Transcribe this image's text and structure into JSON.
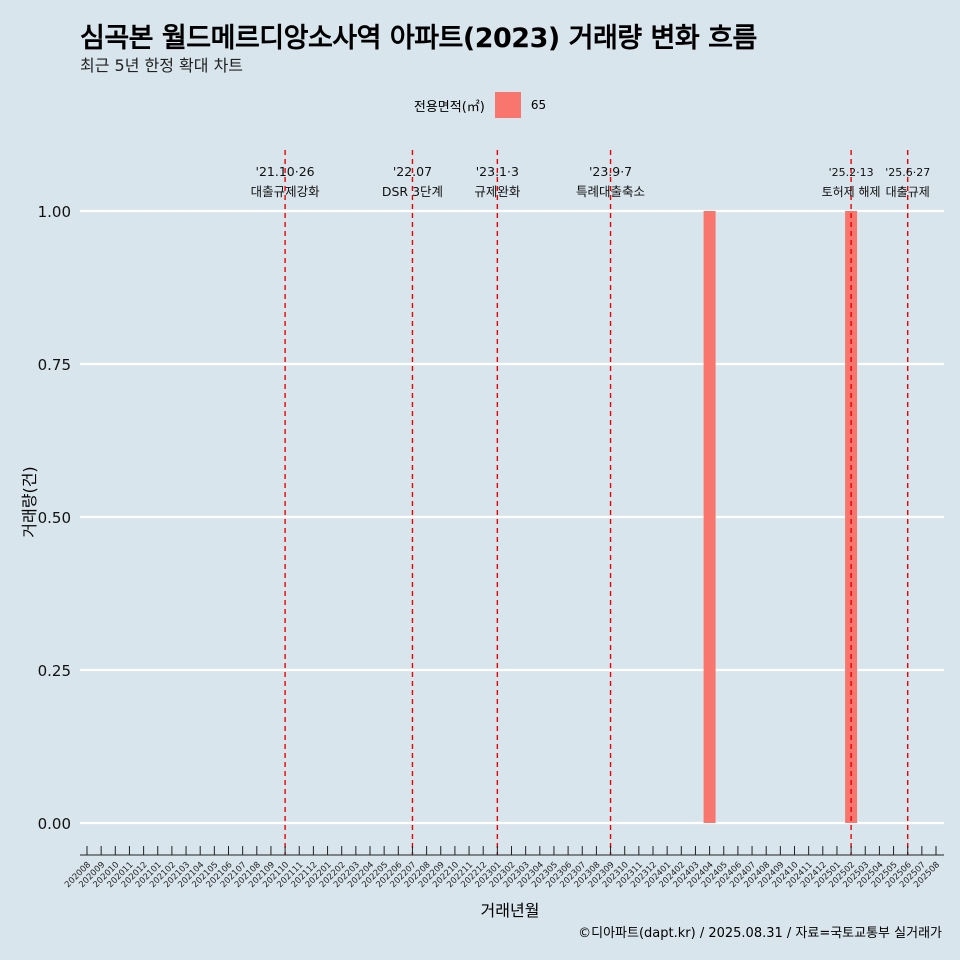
{
  "title": "심곡본 월드메르디앙소사역 아파트(2023) 거래량 변화 흐름",
  "subtitle": "최근 5년 한정 확대 차트",
  "caption": "©디아파트(dapt.kr) / 2025.08.31 / 자료=국토교통부 실거래가",
  "legend": {
    "title": "전용면적(㎡)",
    "items": [
      {
        "label": "65",
        "color": "#f8766d"
      }
    ]
  },
  "chart_data": {
    "type": "bar",
    "xlabel": "거래년월",
    "ylabel": "거래량(건)",
    "ylim": [
      0,
      1
    ],
    "yticks": [
      "0.00",
      "0.25",
      "0.50",
      "0.75",
      "1.00"
    ],
    "categories": [
      "202008",
      "202009",
      "202010",
      "202011",
      "202012",
      "202101",
      "202102",
      "202103",
      "202104",
      "202105",
      "202106",
      "202107",
      "202108",
      "202109",
      "202110",
      "202111",
      "202112",
      "202201",
      "202202",
      "202203",
      "202204",
      "202205",
      "202206",
      "202207",
      "202208",
      "202209",
      "202210",
      "202211",
      "202212",
      "202301",
      "202302",
      "202303",
      "202304",
      "202305",
      "202306",
      "202307",
      "202308",
      "202309",
      "202310",
      "202311",
      "202312",
      "202401",
      "202402",
      "202403",
      "202404",
      "202405",
      "202406",
      "202407",
      "202408",
      "202409",
      "202410",
      "202411",
      "202412",
      "202501",
      "202502",
      "202503",
      "202504",
      "202505",
      "202506",
      "202507",
      "202508"
    ],
    "series": [
      {
        "name": "65",
        "color": "#f8766d",
        "data": [
          {
            "x": "202404",
            "y": 1
          },
          {
            "x": "202502",
            "y": 1
          }
        ]
      }
    ],
    "events": [
      {
        "x": "202110",
        "date": "'21.10·26",
        "label": "대출규제강화"
      },
      {
        "x": "202207",
        "date": "'22.07",
        "label": "DSR 3단계"
      },
      {
        "x": "202301",
        "date": "'23.1·3",
        "label": "규제완화"
      },
      {
        "x": "202309",
        "date": "'23.9·7",
        "label": "특례대출축소"
      },
      {
        "x": "202502",
        "date": "'25.2·13",
        "label": "토허제 해제"
      },
      {
        "x": "202506",
        "date": "'25.6·27",
        "label": "대출규제"
      }
    ],
    "grid": true
  }
}
